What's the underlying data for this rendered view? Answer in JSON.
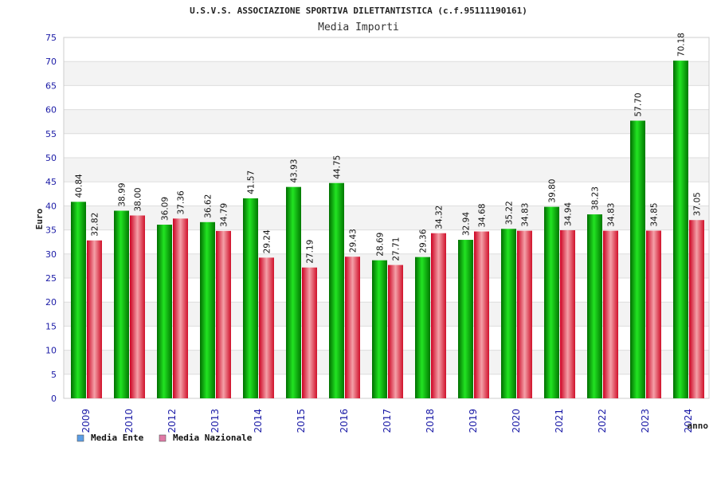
{
  "chart_data": {
    "type": "bar",
    "title": "U.S.V.S. ASSOCIAZIONE SPORTIVA DILETTANTISTICA (c.f.95111190161)",
    "subtitle": "Media Importi",
    "xlabel": "anno",
    "ylabel": "Euro",
    "ylim": [
      0,
      75
    ],
    "yticks": [
      0,
      5,
      10,
      15,
      20,
      25,
      30,
      35,
      40,
      45,
      50,
      55,
      60,
      65,
      70,
      75
    ],
    "grid": true,
    "legend_position": "bottom-left",
    "categories": [
      "2009",
      "2010",
      "2012",
      "2013",
      "2014",
      "2015",
      "2016",
      "2017",
      "2018",
      "2019",
      "2020",
      "2021",
      "2022",
      "2023",
      "2024"
    ],
    "series": [
      {
        "name": "Media Ente",
        "color": "#00b400",
        "values": [
          40.84,
          38.99,
          36.09,
          36.62,
          41.57,
          43.93,
          44.75,
          28.69,
          29.36,
          32.94,
          35.22,
          39.8,
          38.23,
          57.7,
          70.18
        ],
        "labels": [
          "40.84",
          "38.99",
          "36.09",
          "36.62",
          "41.57",
          "43.93",
          "44.75",
          "28.69",
          "29.36",
          "32.94",
          "35.22",
          "39.80",
          "38.23",
          "57.70",
          "70.18"
        ]
      },
      {
        "name": "Media Nazionale",
        "color": "#e8283c",
        "values": [
          32.82,
          38.0,
          37.36,
          34.79,
          29.24,
          27.19,
          29.43,
          27.71,
          34.32,
          34.68,
          34.83,
          34.94,
          34.83,
          34.85,
          37.05
        ],
        "labels": [
          "32.82",
          "38.00",
          "37.36",
          "34.79",
          "29.24",
          "27.19",
          "29.43",
          "27.71",
          "34.32",
          "34.68",
          "34.83",
          "34.94",
          "34.83",
          "34.85",
          "37.05"
        ]
      }
    ],
    "legend": [
      {
        "name": "Media Ente",
        "swatch_color": "#5b9ee6"
      },
      {
        "name": "Media Nazionale",
        "swatch_color": "#e07aa6"
      }
    ]
  }
}
